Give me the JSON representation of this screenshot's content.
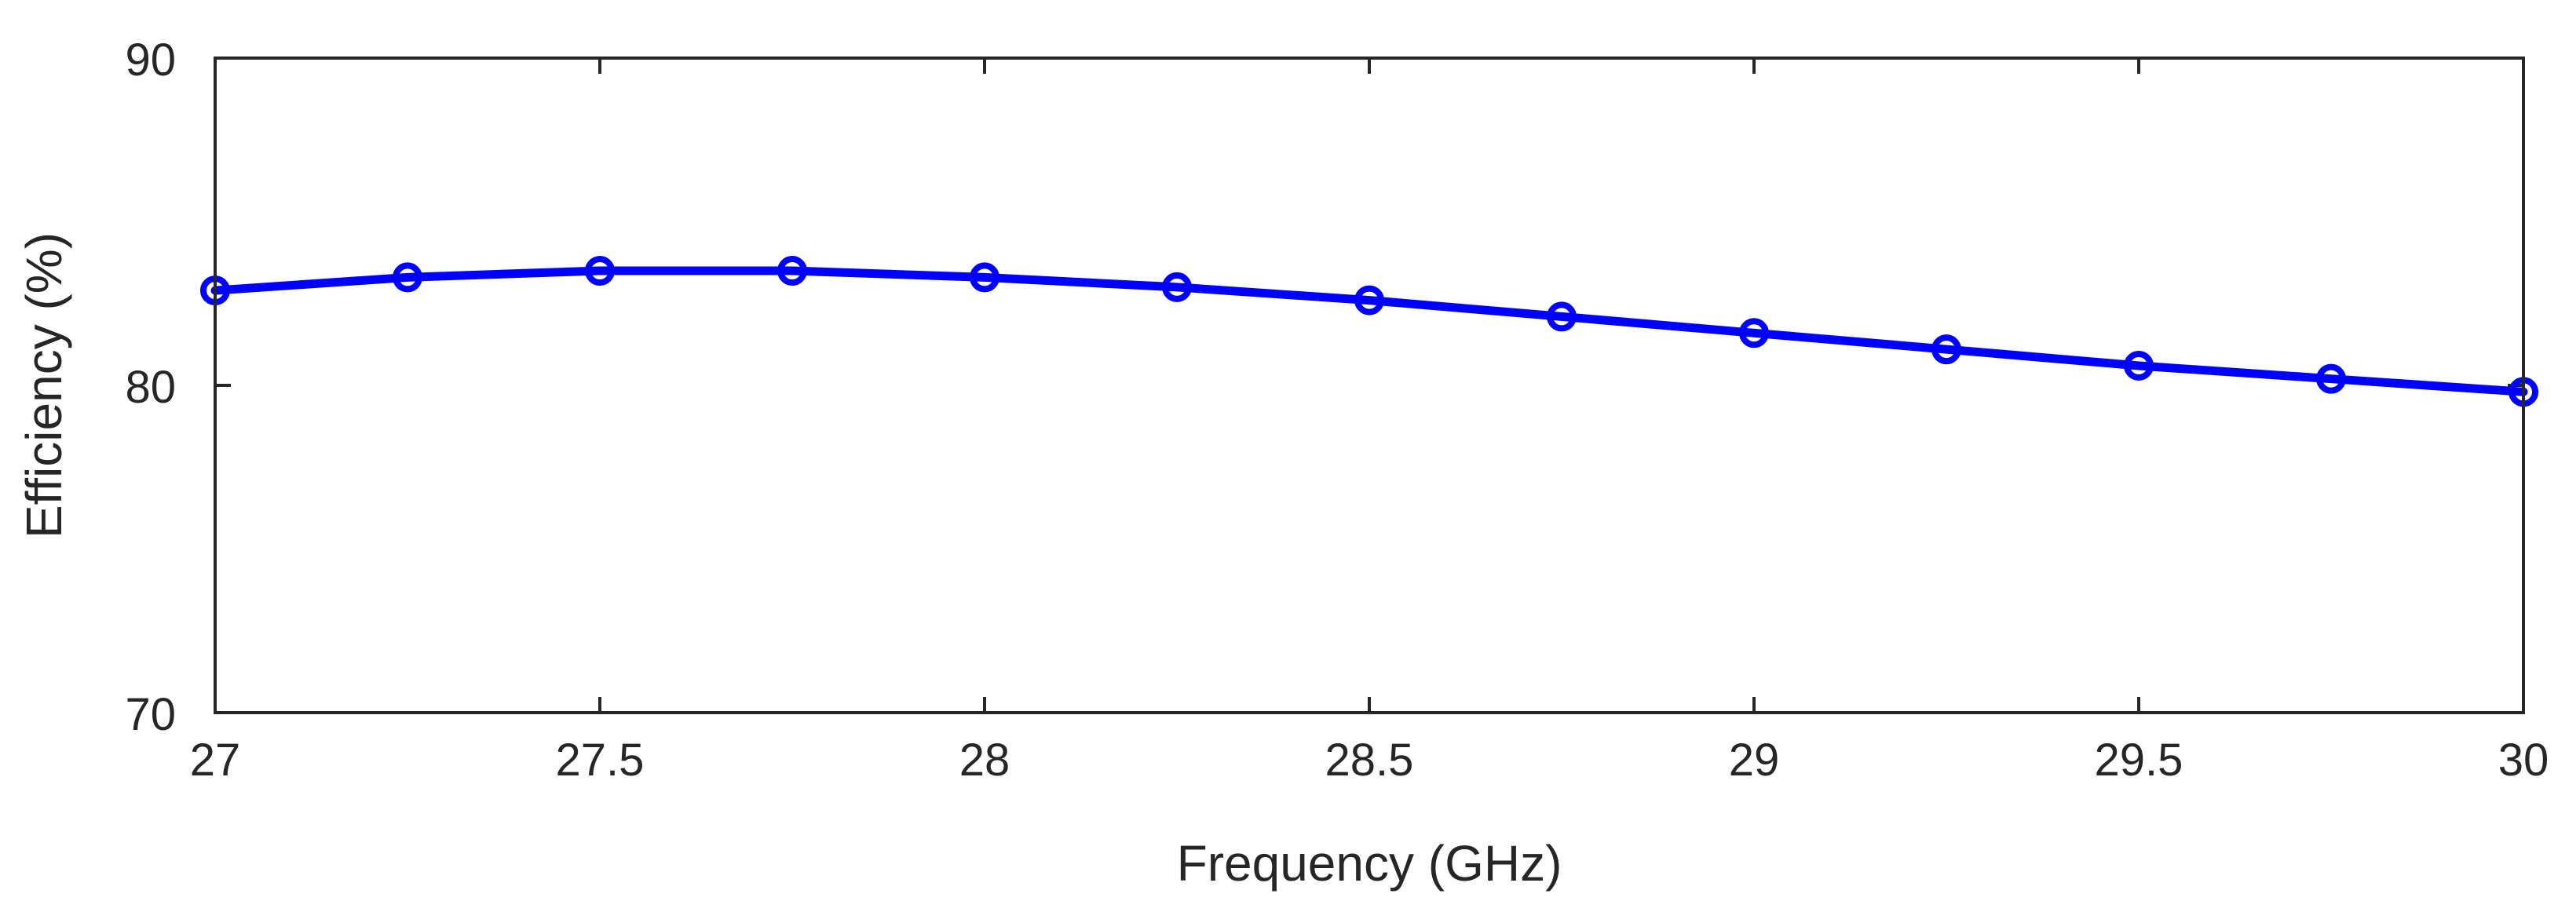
{
  "chart_data": {
    "type": "line",
    "title": "",
    "xlabel": "Frequency (GHz)",
    "ylabel": "Efficiency (%)",
    "xlim": [
      27,
      30
    ],
    "ylim": [
      70,
      90
    ],
    "x_ticks": [
      27,
      27.5,
      28,
      28.5,
      29,
      29.5,
      30
    ],
    "x_tick_labels": [
      "27",
      "27.5",
      "28",
      "28.5",
      "29",
      "29.5",
      "30"
    ],
    "y_ticks": [
      70,
      80,
      90
    ],
    "y_tick_labels": [
      "70",
      "80",
      "90"
    ],
    "grid": false,
    "series": [
      {
        "color": "#0000ff",
        "marker": "circle",
        "x": [
          27,
          27.25,
          27.5,
          27.75,
          28,
          28.25,
          28.5,
          28.75,
          29,
          29.25,
          29.5,
          29.75,
          30
        ],
        "y": [
          82.9,
          83.3,
          83.5,
          83.5,
          83.3,
          83.0,
          82.6,
          82.1,
          81.6,
          81.1,
          80.6,
          80.2,
          79.8
        ]
      }
    ]
  }
}
